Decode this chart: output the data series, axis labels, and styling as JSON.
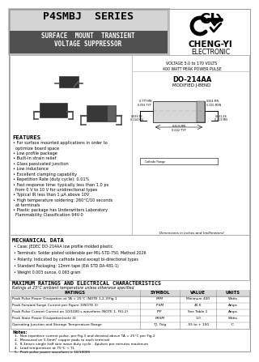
{
  "title": "P4SMBJ  SERIES",
  "subtitle_line1": "SURFACE  MOUNT  TRANSIENT",
  "subtitle_line2": "VOLTAGE SUPPRESSOR",
  "brand": "CHENG-YI",
  "brand_sub": "ELECTRONIC",
  "pkg_name": "DO-214AA",
  "pkg_sub": "MODIFIED J-BEND",
  "voltage_note": "VOLTAGE 5.0 to 170 VOLTS\n400 WATT PEAK POWER PULSE",
  "features_title": "FEATURES",
  "features": [
    "For surface mounted applications in order to\n  optimize board space",
    "Low profile package",
    "Built-in strain relief",
    "Glass passivated junction",
    "Low inductance",
    "Excellent clamping capability",
    "Repetition Rate (duty cycle): 0.01%",
    "Fast response time: typically less than 1.0 ps\n  from 0 V to 10 V for unidirectional types",
    "Typical IR less than 1 μA above 10V",
    "High temperature soldering: 260°C/10 seconds\n  at terminals",
    "Plastic package has Underwriters Laboratory\n  Flammability Classification 94V-0"
  ],
  "mech_title": "MECHANICAL DATA",
  "mech_items": [
    "Case: JEDEC DO-214AA low profile molded plastic",
    "Terminals: Solder plated solderable per MIL-STD-750, Method 2026",
    "Polarity: Indicated by cathode band except bi-directional types",
    "Standard Packaging: 12mm tape (EIA STD DA-481-1)",
    "Weight 0.003 ounce, 0.093 gram"
  ],
  "elec_title": "MAXIMUM RATINGS AND ELECTRICAL CHARACTERISTICS",
  "elec_sub": "Ratings at 25°C ambient temperature unless otherwise specified",
  "table_headers": [
    "RATINGS",
    "SYMBOL",
    "VALUE",
    "UNITS"
  ],
  "table_rows": [
    [
      "Peak Pulse Power Dissipation at TA = 25°C (NOTE 1,2,3)Fig.1",
      "PPM",
      "Minimum 400",
      "Watts"
    ],
    [
      "Peak Forward Surge Current per Figure 3(NOTE 3)",
      "IFSM",
      "40.0",
      "Amps"
    ],
    [
      "Peak Pulse Current Current on 10/1000 s waveform (NOTE 1, FIG.2)",
      "IPP",
      "See Table 1",
      "Amps"
    ],
    [
      "Peak State Power Dissipation(note 4)",
      "PRSM",
      "1.0",
      "Watts"
    ],
    [
      "Operating Junction and Storage Temperature Range",
      "TJ, Tstg",
      "-55 to + 150",
      "°C"
    ]
  ],
  "notes_title": "Notes:",
  "notes": [
    "1.  Non-repetitive current pulse, per Fig.3 and derated above TA = 25°C per Fig.2",
    "2.  Measured on 5.0mm² copper pads to each terminal",
    "3.  8.3msec single half sine wave duty cycle - 4pulses per minutes maximum",
    "4.  Lead temperature at 75°C < TL",
    "5.  Peak pulse power waveform is 10/1000S"
  ],
  "header_bg": "#c0c0c0",
  "header_dark": "#505050",
  "white": "#ffffff",
  "black": "#000000",
  "light_gray": "#e8e8e8",
  "off_white": "#f5f5f5"
}
